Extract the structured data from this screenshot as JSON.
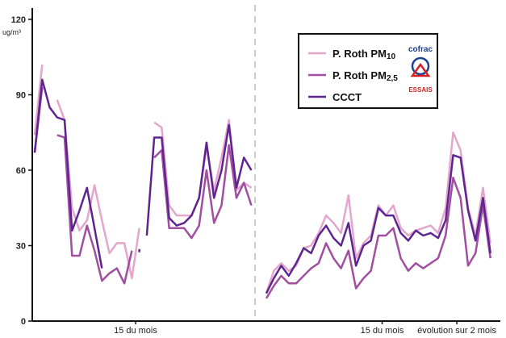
{
  "chart_data": {
    "type": "line",
    "title": "",
    "unit": "ug/m³",
    "ylim": [
      0,
      120
    ],
    "yticks": [
      0,
      30,
      60,
      90,
      120
    ],
    "xlim": [
      0,
      60
    ],
    "x_labels": [
      {
        "x": 13.5,
        "label": "15 du mois"
      },
      {
        "x": 46.5,
        "label": "15 du mois"
      },
      {
        "x": 56.5,
        "label": "évolution sur 2 mois"
      }
    ],
    "period_divider_x": 29.5,
    "grid": false,
    "legend": {
      "position": "top-right",
      "entries": [
        {
          "name": "P. Roth PM",
          "sub": "10",
          "color": "#e3a6cd",
          "width": 2.5
        },
        {
          "name": "P. Roth PM",
          "sub": "2,5",
          "color": "#a14ea0",
          "width": 2.5
        },
        {
          "name": "CCCT",
          "sub": "",
          "color": "#5e2590",
          "width": 2.5
        }
      ]
    },
    "logo": {
      "top": "cofrac",
      "bottom": "ESSAIS"
    },
    "series": [
      {
        "name": "P. Roth PM10",
        "color": "#e3a6cd",
        "segments": [
          [
            [
              0,
              74
            ],
            [
              1,
              102
            ]
          ],
          [
            [
              3,
              88
            ],
            [
              4,
              80
            ],
            [
              5,
              45
            ],
            [
              6,
              36
            ],
            [
              7,
              40
            ],
            [
              8,
              54
            ],
            [
              9,
              40
            ],
            [
              10,
              27
            ],
            [
              11,
              31
            ],
            [
              12,
              31
            ],
            [
              13,
              17
            ],
            [
              14,
              37
            ]
          ],
          [
            [
              16,
              79
            ],
            [
              17,
              77
            ],
            [
              18,
              46
            ],
            [
              19,
              42
            ],
            [
              20,
              42
            ],
            [
              21,
              42
            ],
            [
              22,
              49
            ],
            [
              23,
              69
            ],
            [
              24,
              52
            ],
            [
              25,
              65
            ],
            [
              26,
              80
            ],
            [
              27,
              52
            ],
            [
              28,
              55
            ],
            [
              29,
              53
            ]
          ],
          [
            [
              31,
              11
            ],
            [
              32,
              20
            ],
            [
              33,
              23
            ],
            [
              34,
              20
            ],
            [
              35,
              22
            ],
            [
              36,
              29
            ],
            [
              37,
              30
            ],
            [
              38,
              35
            ],
            [
              39,
              42
            ],
            [
              40,
              39
            ],
            [
              41,
              35
            ],
            [
              42,
              50
            ],
            [
              43,
              25
            ],
            [
              44,
              31
            ],
            [
              45,
              34
            ],
            [
              46,
              46
            ],
            [
              47,
              42
            ],
            [
              48,
              46
            ],
            [
              49,
              37
            ],
            [
              50,
              34
            ],
            [
              51,
              36
            ],
            [
              52,
              37
            ],
            [
              53,
              38
            ],
            [
              54,
              35
            ],
            [
              55,
              45
            ],
            [
              56,
              75
            ],
            [
              57,
              68
            ],
            [
              58,
              45
            ],
            [
              59,
              34
            ],
            [
              60,
              53
            ],
            [
              61,
              31
            ]
          ]
        ]
      },
      {
        "name": "P. Roth PM2,5",
        "color": "#a14ea0",
        "segments": [
          [
            [
              0,
              67
            ],
            [
              1,
              93
            ]
          ],
          [
            [
              3,
              74
            ],
            [
              4,
              73
            ],
            [
              5,
              26
            ],
            [
              6,
              26
            ],
            [
              7,
              38
            ],
            [
              8,
              28
            ],
            [
              9,
              16
            ],
            [
              10,
              19
            ],
            [
              11,
              21
            ],
            [
              12,
              15
            ],
            [
              13,
              28
            ]
          ],
          [
            [
              16,
              65
            ],
            [
              17,
              68
            ],
            [
              18,
              37
            ],
            [
              19,
              37
            ],
            [
              20,
              37
            ],
            [
              21,
              33
            ],
            [
              22,
              38
            ],
            [
              23,
              60
            ],
            [
              24,
              39
            ],
            [
              25,
              46
            ],
            [
              26,
              70
            ],
            [
              27,
              49
            ],
            [
              28,
              55
            ],
            [
              29,
              46
            ]
          ],
          [
            [
              31,
              9
            ],
            [
              32,
              14
            ],
            [
              33,
              18
            ],
            [
              34,
              15
            ],
            [
              35,
              15
            ],
            [
              36,
              18
            ],
            [
              37,
              21
            ],
            [
              38,
              23
            ],
            [
              39,
              31
            ],
            [
              40,
              25
            ],
            [
              41,
              21
            ],
            [
              42,
              28
            ],
            [
              43,
              13
            ],
            [
              44,
              17
            ],
            [
              45,
              20
            ],
            [
              46,
              34
            ],
            [
              47,
              34
            ],
            [
              48,
              37
            ],
            [
              49,
              25
            ],
            [
              50,
              20
            ],
            [
              51,
              23
            ],
            [
              52,
              21
            ],
            [
              53,
              23
            ],
            [
              54,
              25
            ],
            [
              55,
              34
            ],
            [
              56,
              57
            ],
            [
              57,
              49
            ],
            [
              58,
              22
            ],
            [
              59,
              27
            ],
            [
              60,
              46
            ],
            [
              61,
              25
            ]
          ]
        ]
      },
      {
        "name": "CCCT",
        "color": "#5e2590",
        "segments": [
          [
            [
              0,
              67
            ],
            [
              1,
              96
            ],
            [
              2,
              85
            ],
            [
              3,
              81
            ],
            [
              4,
              80
            ],
            [
              5,
              36
            ],
            [
              6,
              44
            ],
            [
              7,
              53
            ],
            [
              8,
              37
            ],
            [
              9,
              21
            ]
          ],
          [
            [
              14,
              28
            ]
          ],
          [
            [
              15,
              34
            ],
            [
              16,
              73
            ],
            [
              17,
              73
            ],
            [
              18,
              41
            ],
            [
              19,
              38
            ],
            [
              20,
              39
            ],
            [
              21,
              42
            ],
            [
              22,
              49
            ],
            [
              23,
              71
            ],
            [
              24,
              49
            ],
            [
              25,
              60
            ],
            [
              26,
              78
            ],
            [
              27,
              53
            ],
            [
              28,
              65
            ],
            [
              29,
              60
            ]
          ],
          [
            [
              31,
              11
            ],
            [
              32,
              17
            ],
            [
              33,
              22
            ],
            [
              34,
              18
            ],
            [
              35,
              23
            ],
            [
              36,
              29
            ],
            [
              37,
              27
            ],
            [
              38,
              34
            ],
            [
              39,
              38
            ],
            [
              40,
              33
            ],
            [
              41,
              30
            ],
            [
              42,
              39
            ],
            [
              43,
              22
            ],
            [
              44,
              30
            ],
            [
              45,
              32
            ],
            [
              46,
              45
            ],
            [
              47,
              42
            ],
            [
              48,
              42
            ],
            [
              49,
              35
            ],
            [
              50,
              32
            ],
            [
              51,
              36
            ],
            [
              52,
              34
            ],
            [
              53,
              35
            ],
            [
              54,
              33
            ],
            [
              55,
              40
            ],
            [
              56,
              66
            ],
            [
              57,
              65
            ],
            [
              58,
              44
            ],
            [
              59,
              32
            ],
            [
              60,
              49
            ],
            [
              61,
              27
            ]
          ]
        ]
      }
    ]
  }
}
